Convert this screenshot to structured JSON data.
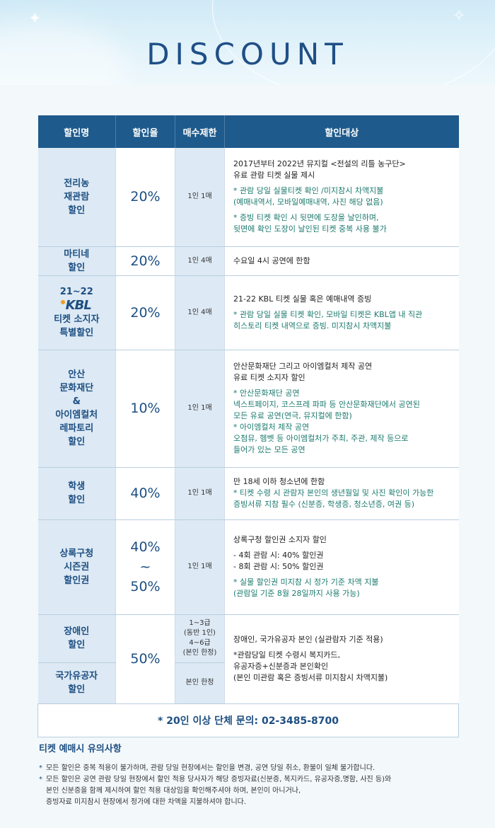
{
  "title": "DISCOUNT",
  "headers": [
    "할인명",
    "할인율",
    "매수제한",
    "할인대상"
  ],
  "rows": [
    {
      "name": [
        "전리농",
        "재관람",
        "할인"
      ],
      "rate": [
        "20%"
      ],
      "limit": [
        "1인 1매"
      ],
      "lines": [
        {
          "t": "2017년부터 2022년 뮤지컬 <전설의 리틀 농구단>",
          "note": false
        },
        {
          "t": "유료 관람 티켓 실물 제시",
          "note": false
        },
        {
          "t": "",
          "note": false
        },
        {
          "t": "* 관람 당일 실물티켓 확인 /미지참시 차액지불",
          "note": true
        },
        {
          "t": "(예매내역서, 모바일예매내역, 사진 해당 없음)",
          "note": true
        },
        {
          "t": "",
          "note": false
        },
        {
          "t": "* 증빙 티켓 확인 시 뒷면에 도장을 날인하며,",
          "note": true
        },
        {
          "t": "뒷면에 확인 도장이 날인된 티켓 중복 사용 불가",
          "note": true
        }
      ]
    },
    {
      "name": [
        "마티네",
        "할인"
      ],
      "rate": [
        "20%"
      ],
      "limit": [
        "1인 4매"
      ],
      "lines": [
        {
          "t": "수요일 4시 공연에 한함",
          "note": false
        }
      ]
    },
    {
      "name": [
        "티켓 소지자",
        "특별할인"
      ],
      "kbl_top": "21~22",
      "kbl_logo": "KBL",
      "rate": [
        "20%"
      ],
      "limit": [
        "1인 4매"
      ],
      "lines": [
        {
          "t": "21-22 KBL 티켓 실물 혹은 예매내역 증빙",
          "note": false
        },
        {
          "t": "",
          "note": false
        },
        {
          "t": " * 관람 당일 실물 티켓 확인, 모바일 티켓은 KBL앱 내 직관",
          "note": true
        },
        {
          "t": "히스토리 티켓 내역으로 증빙. 미지참시 차액지불",
          "note": true
        }
      ]
    },
    {
      "name": [
        "안산",
        "문화재단",
        "&",
        "아이엠컬처",
        "레파토리",
        "할인"
      ],
      "rate": [
        "10%"
      ],
      "limit": [
        "1인 1매"
      ],
      "lines": [
        {
          "t": "안산문화재단 그리고 아이엠컬처 제작 공연",
          "note": false
        },
        {
          "t": "유료 티켓 소지자 할인",
          "note": false
        },
        {
          "t": "",
          "note": false
        },
        {
          "t": "* 안산문화재단 공연",
          "note": true
        },
        {
          "t": "넥스트페이지, 코스프레 파파 등 안산문화재단에서 공연된",
          "note": true
        },
        {
          "t": "모든 유료 공연(연극, 뮤지컬에 한함)",
          "note": true
        },
        {
          "t": "* 아이엠컬처 제작 공연",
          "note": true
        },
        {
          "t": "오첨뮤, 헴벳 등 아이엠컬처가 주최, 주관, 제작 등으로",
          "note": true
        },
        {
          "t": "들어가 있는 모든 공연",
          "note": true
        }
      ]
    },
    {
      "name": [
        "학생",
        "할인"
      ],
      "rate": [
        "40%"
      ],
      "limit": [
        "1인 1매"
      ],
      "lines": [
        {
          "t": "만 18세 이하 청소년에 한함",
          "note": false
        },
        {
          "t": "* 티켓 수령 시 관람자 본인의 생년월일 및 사진 확인이 가능한",
          "note": true
        },
        {
          "t": "증빙서류 지참 필수 (신분증, 학생증, 청소년증, 여권 등)",
          "note": true
        }
      ]
    },
    {
      "name": [
        "상록구청",
        "시즌권",
        "할인권"
      ],
      "rate": [
        "40%",
        "~",
        "50%"
      ],
      "limit": [
        "1인 1매"
      ],
      "lines": [
        {
          "t": "상록구청 할인권 소지자 할인",
          "note": false
        },
        {
          "t": "",
          "note": false
        },
        {
          "t": "- 4회 관람 시: 40% 할인권",
          "note": false
        },
        {
          "t": "- 8회 관람 시: 50% 할인권",
          "note": false
        },
        {
          "t": "",
          "note": false
        },
        {
          "t": "* 실물 할인권 미지참 시 정가 기준 차액 지불",
          "note": true
        },
        {
          "t": "(관람일 기준 8월 28일까지 사용 가능)",
          "note": true
        }
      ]
    }
  ],
  "disabled": {
    "name1": [
      "장애인",
      "할인"
    ],
    "limit1": [
      "1~3급",
      "(동반 1인)",
      "4~6급",
      "(본인 한정)"
    ],
    "name2": [
      "국가유공자",
      "할인"
    ],
    "limit2": [
      "본인 한정"
    ],
    "rate": "50%",
    "lines": [
      {
        "t": "장애인, 국가유공자 본인 (실관람자 기준 적용)",
        "note": false
      },
      {
        "t": "",
        "note": false
      },
      {
        "t": "*관람당일 티켓 수령시 복지카드,",
        "note": false
      },
      {
        "t": "유공자증+신분증과 본인확인",
        "note": false
      },
      {
        "t": "(본인 미관람 혹은 증빙서류 미지참시 차액지불)",
        "note": false
      }
    ]
  },
  "group": "* 20인 이상 단체 문의: 02-3485-8700",
  "notes": {
    "heading": "티켓 예매시 유의사항",
    "items": [
      [
        "모든 할인은 중복 적용이 불가하며, 관람 당일 현장에서는 할인을 변경, 공연 당일 취소, 환불이 일체 불가합니다."
      ],
      [
        "모든 할인은 공연 관람 당일 현장에서 할인 적용 당사자가 해당 증빙자료(신분증, 복지카드, 유공자증,명함, 사진 등)와",
        "본인 신분증을 함께 제시하여 할인 적용 대상임을 확인해주셔야 하며, 본인이 아니거나,",
        "증빙자료 미지참시 현장에서 정가에 대한 차액을 지불하셔야 합니다."
      ]
    ]
  }
}
